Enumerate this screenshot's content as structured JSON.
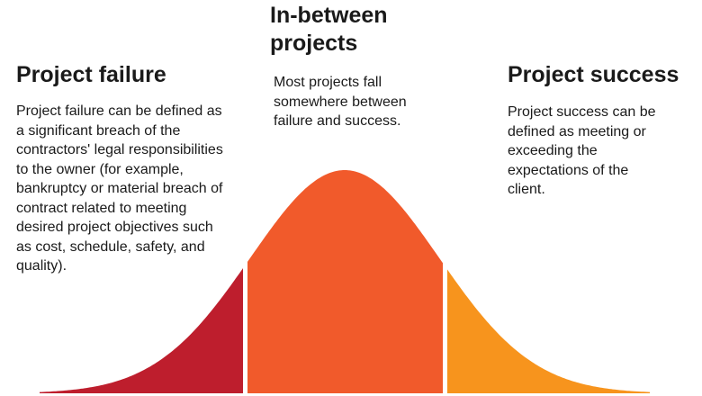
{
  "sections": {
    "failure": {
      "title": "Project failure",
      "description": "Project failure can be defined as a significant breach of the contractors' legal responsibilities to the owner (for example, bankruptcy or material breach of contract related to meeting desired project objectives such as cost, schedule, safety, and quality).",
      "color": "#be1e2d"
    },
    "between": {
      "title": "In-between projects",
      "description": "Most projects fall somewhere between failure and success.",
      "color": "#f15a2b"
    },
    "success": {
      "title": "Project success",
      "description": "Project success can be defined as meeting or exceeding the expectations of the client.",
      "color": "#f7941d"
    }
  }
}
